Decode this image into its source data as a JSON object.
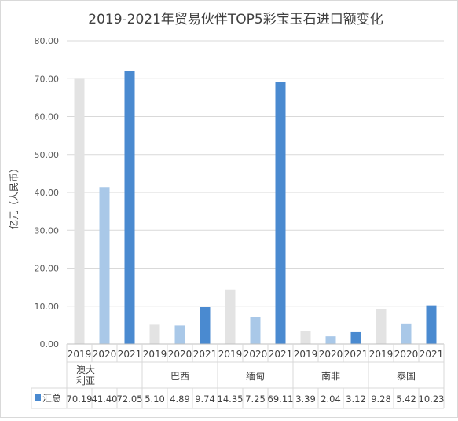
{
  "chart_data": {
    "type": "bar",
    "title": "2019-2021年贸易伙伴TOP5彩宝玉石进口额变化",
    "ylabel": "亿元（人民币）",
    "xlabel": "",
    "ylim": [
      0,
      80
    ],
    "yticks": [
      "0.00",
      "10.00",
      "20.00",
      "30.00",
      "40.00",
      "50.00",
      "60.00",
      "70.00",
      "80.00"
    ],
    "grid": true,
    "groups": [
      "澳大利亚",
      "巴西",
      "缅甸",
      "南非",
      "泰国"
    ],
    "years": [
      "2019",
      "2020",
      "2021"
    ],
    "year_colors": [
      "#e3e3e3",
      "#a9c8e8",
      "#4a8ad0"
    ],
    "series": [
      {
        "name": "汇总",
        "values": [
          70.19,
          41.4,
          72.05,
          5.1,
          4.89,
          9.74,
          14.35,
          7.25,
          69.11,
          3.39,
          2.04,
          3.12,
          9.28,
          5.42,
          10.23
        ]
      }
    ],
    "table_values": [
      "70.19",
      "41.40",
      "72.05",
      "5.10",
      "4.89",
      "9.74",
      "14.35",
      "7.25",
      "69.11",
      "3.39",
      "2.04",
      "3.12",
      "9.28",
      "5.42",
      "10.23"
    ],
    "legend_color": "#4a8ad0"
  }
}
